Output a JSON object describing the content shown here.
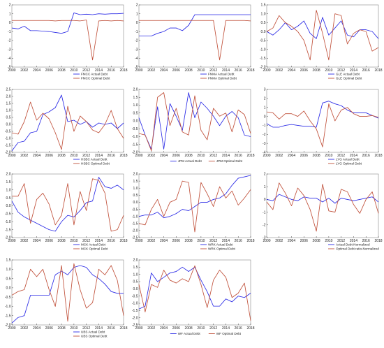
{
  "colors": {
    "actual": "#2a2ae6",
    "optimal": "#c0503a",
    "axis": "#444444",
    "frame": "#888888"
  },
  "chart_data": [
    {
      "id": "fmcc",
      "type": "line",
      "ylim": [
        -5,
        2
      ],
      "yticks": [
        "-5",
        "-4",
        "-3",
        "-2",
        "-1",
        "0",
        "1",
        "2"
      ],
      "x": [
        2000,
        2001,
        2002,
        2003,
        2004,
        2005,
        2006,
        2007,
        2008,
        2009,
        2010,
        2011,
        2012,
        2013,
        2014,
        2015,
        2016,
        2017,
        2018
      ],
      "xticks": [
        "2000",
        "2002",
        "2004",
        "2006",
        "2008",
        "2010",
        "2012",
        "2014",
        "2016",
        "2018"
      ],
      "legend": "bottom-right",
      "series": [
        {
          "name": "FMCC Actual Debt",
          "role": "actual",
          "values": [
            -0.6,
            -0.7,
            -0.4,
            -0.9,
            -0.9,
            -0.95,
            -1.0,
            -1.1,
            -1.2,
            -1.0,
            1.1,
            0.9,
            0.95,
            0.9,
            1.0,
            0.95,
            1.0,
            1.0,
            1.05
          ]
        },
        {
          "name": "FMCC Optimal Debt",
          "role": "optimal",
          "values": [
            0.25,
            0.25,
            0.25,
            0.25,
            0.25,
            0.25,
            0.25,
            0.2,
            0.25,
            0.25,
            0.25,
            0.2,
            0.3,
            -4.2,
            0.2,
            0.25,
            0.2,
            0.25,
            0.2
          ]
        }
      ]
    },
    {
      "id": "fnma",
      "type": "line",
      "ylim": [
        -5,
        2
      ],
      "yticks": [
        "-5",
        "-4",
        "-3",
        "-2",
        "-1",
        "0",
        "1",
        "2"
      ],
      "x": [
        2000,
        2001,
        2002,
        2003,
        2004,
        2005,
        2006,
        2007,
        2008,
        2009,
        2010,
        2011,
        2012,
        2013,
        2014,
        2015,
        2016,
        2017,
        2018
      ],
      "xticks": [
        "2000",
        "2002",
        "2004",
        "2006",
        "2008",
        "2010",
        "2012",
        "2014",
        "2016",
        "2018"
      ],
      "legend": "bottom-right",
      "series": [
        {
          "name": "FNMA Actual Debt",
          "role": "actual",
          "values": [
            -1.5,
            -1.5,
            -1.5,
            -1.2,
            -1.0,
            -0.6,
            -0.6,
            -0.9,
            -0.3,
            0.9,
            0.9,
            0.9,
            0.9,
            0.9,
            0.9,
            0.9,
            0.9,
            0.9,
            0.9
          ]
        },
        {
          "name": "FNMA Optimal Debt",
          "role": "optimal",
          "values": [
            0.25,
            0.25,
            0.25,
            0.25,
            0.25,
            0.25,
            0.25,
            0.25,
            0.25,
            0.25,
            0.25,
            0.25,
            0.25,
            -4.2,
            0.25,
            0.25,
            0.25,
            0.25,
            0.2
          ]
        }
      ]
    },
    {
      "id": "gle",
      "type": "line",
      "ylim": [
        -2,
        1.5
      ],
      "yticks": [
        "-2.0",
        "-1.5",
        "-1.0",
        "-0.5",
        "0.0",
        "0.5",
        "1.0",
        "1.5"
      ],
      "x": [
        2000,
        2001,
        2002,
        2003,
        2004,
        2005,
        2006,
        2007,
        2008,
        2009,
        2010,
        2011,
        2012,
        2013,
        2014,
        2015,
        2016,
        2017,
        2018
      ],
      "xticks": [
        "2000",
        "2002",
        "2004",
        "2006",
        "2008",
        "2010",
        "2012",
        "2014",
        "2016",
        "2018"
      ],
      "legend": "bottom-right",
      "series": [
        {
          "name": "GLE Actual Debt",
          "role": "actual",
          "values": [
            0.0,
            -0.2,
            0.1,
            0.5,
            0.1,
            0.3,
            0.6,
            -0.1,
            -0.4,
            0.8,
            -0.2,
            0.2,
            0.6,
            -0.2,
            -0.3,
            0.1,
            0.1,
            0.0,
            -0.4
          ]
        },
        {
          "name": "GLE Optimal Debt",
          "role": "optimal",
          "values": [
            0.0,
            0.2,
            0.9,
            0.5,
            0.3,
            0.0,
            -0.5,
            -1.6,
            1.2,
            -0.1,
            -1.6,
            1.0,
            0.9,
            -0.7,
            -0.1,
            0.1,
            0.0,
            -1.1,
            -0.9
          ]
        }
      ]
    },
    {
      "id": "hsbc",
      "type": "line",
      "ylim": [
        -2,
        2.5
      ],
      "yticks": [
        "-2.0",
        "-1.5",
        "-1.0",
        "-0.5",
        "0.0",
        "0.5",
        "1.0",
        "1.5",
        "2.0",
        "2.5"
      ],
      "x": [
        2000,
        2001,
        2002,
        2003,
        2004,
        2005,
        2006,
        2007,
        2008,
        2009,
        2010,
        2011,
        2012,
        2013,
        2014,
        2015,
        2016,
        2017,
        2018
      ],
      "xticks": [
        "2000",
        "2002",
        "2004",
        "2006",
        "2008",
        "2010",
        "2012",
        "2014",
        "2016",
        "2018"
      ],
      "legend": "bottom-right",
      "series": [
        {
          "name": "HSBC Actual Debt",
          "role": "actual",
          "values": [
            -1.9,
            -1.3,
            -1.2,
            -0.6,
            -0.5,
            0.7,
            0.9,
            1.2,
            2.1,
            0.2,
            0.3,
            0.0,
            0.2,
            -0.2,
            0.1,
            0.0,
            0.1,
            -0.3,
            0.1
          ]
        },
        {
          "name": "HSBC Optimal Debt",
          "role": "optimal",
          "values": [
            -0.6,
            -0.7,
            0.2,
            1.6,
            0.3,
            0.8,
            0.4,
            -0.6,
            -1.8,
            1.3,
            -0.5,
            0.6,
            0.2,
            -0.4,
            -0.6,
            0.0,
            1.0,
            -0.3,
            -1.0
          ]
        }
      ]
    },
    {
      "id": "jpm",
      "type": "line",
      "ylim": [
        -2,
        2
      ],
      "yticks": [
        "-2.0",
        "-1.5",
        "-1.0",
        "-0.5",
        "0.0",
        "0.5",
        "1.0",
        "1.5",
        "2.0"
      ],
      "x": [
        2000,
        2001,
        2002,
        2003,
        2004,
        2005,
        2006,
        2007,
        2008,
        2009,
        2010,
        2011,
        2012,
        2013,
        2014,
        2015,
        2016,
        2017,
        2018
      ],
      "xticks": [
        "2000",
        "2002",
        "2004",
        "2006",
        "2008",
        "2010",
        "2012",
        "2014",
        "2016",
        "2018"
      ],
      "legend": "bottom-center",
      "series": [
        {
          "name": "JPM Actual Debt",
          "role": "actual",
          "values": [
            0.2,
            -0.9,
            -1.8,
            0.9,
            -1.8,
            1.1,
            0.3,
            -0.6,
            1.8,
            0.2,
            1.2,
            0.8,
            0.3,
            -0.3,
            0.3,
            0.6,
            0.2,
            -0.9,
            -1.0
          ]
        },
        {
          "name": "JPM Optimal Debt",
          "role": "optimal",
          "values": [
            -0.8,
            -0.9,
            -1.9,
            1.5,
            1.8,
            -0.3,
            0.8,
            -0.7,
            -0.9,
            1.6,
            -0.6,
            -1.2,
            0.8,
            0.3,
            0.5,
            -0.7,
            0.7,
            0.4,
            -0.8
          ]
        }
      ]
    },
    {
      "id": "lyg",
      "type": "line",
      "ylim": [
        -4,
        3
      ],
      "yticks": [
        "-4",
        "-3",
        "-2",
        "-1",
        "0",
        "1",
        "2",
        "3"
      ],
      "x": [
        2000,
        2001,
        2002,
        2003,
        2004,
        2005,
        2006,
        2007,
        2008,
        2009,
        2010,
        2011,
        2012,
        2013,
        2014,
        2015,
        2016,
        2017,
        2018
      ],
      "xticks": [
        "2000",
        "2002",
        "2004",
        "2006",
        "2008",
        "2010",
        "2012",
        "2014",
        "2016",
        "2018"
      ],
      "legend": "bottom-right",
      "series": [
        {
          "name": "LYG Actual Debt",
          "role": "actual",
          "values": [
            -0.8,
            -1.2,
            -1.2,
            -1.0,
            -0.9,
            -1.0,
            -1.1,
            -1.1,
            -1.2,
            1.5,
            1.7,
            1.4,
            1.2,
            0.7,
            0.4,
            0.4,
            0.4,
            0.1,
            -0.2
          ]
        },
        {
          "name": "LYG Optimal Debt",
          "role": "optimal",
          "values": [
            0.5,
            0.4,
            -0.3,
            0.3,
            0.3,
            0.0,
            0.6,
            -0.5,
            -1.4,
            -3.4,
            1.4,
            -0.5,
            0.7,
            1.0,
            0.3,
            0.0,
            0.0,
            0.1,
            -0.1
          ]
        }
      ]
    },
    {
      "id": "mck",
      "type": "line",
      "ylim": [
        -2,
        2
      ],
      "yticks": [
        "-2.0",
        "-1.5",
        "-1.0",
        "-0.5",
        "0.0",
        "0.5",
        "1.0",
        "1.5",
        "2.0"
      ],
      "x": [
        2000,
        2001,
        2002,
        2003,
        2004,
        2005,
        2006,
        2007,
        2008,
        2009,
        2010,
        2011,
        2012,
        2013,
        2014,
        2015,
        2016,
        2017,
        2018
      ],
      "xticks": [
        "2000",
        "2002",
        "2004",
        "2006",
        "2008",
        "2010",
        "2012",
        "2014",
        "2016",
        "2018"
      ],
      "legend": "bottom-right",
      "series": [
        {
          "name": "MCK Actual Debt",
          "role": "actual",
          "values": [
            0.3,
            -0.4,
            -0.7,
            -0.9,
            -1.1,
            -1.3,
            -1.5,
            -1.6,
            -1.0,
            -0.6,
            -0.7,
            -0.3,
            0.2,
            0.3,
            1.8,
            1.2,
            1.1,
            1.3,
            1.0
          ]
        },
        {
          "name": "MCK Optimal Debt",
          "role": "optimal",
          "values": [
            0.6,
            0.6,
            1.4,
            -1.1,
            0.4,
            0.8,
            0.1,
            -1.2,
            -0.6,
            1.4,
            -1.2,
            0.9,
            -0.3,
            1.7,
            1.6,
            0.8,
            -1.6,
            -1.5,
            -0.6
          ]
        }
      ]
    },
    {
      "id": "wrk",
      "type": "line",
      "ylim": [
        -2.5,
        2
      ],
      "yticks": [
        "-2.5",
        "-2.0",
        "-1.5",
        "-1.0",
        "-0.5",
        "0.0",
        "0.5",
        "1.0",
        "1.5",
        "2.0"
      ],
      "x": [
        2000,
        2001,
        2002,
        2003,
        2004,
        2005,
        2006,
        2007,
        2008,
        2009,
        2010,
        2011,
        2012,
        2013,
        2014,
        2015,
        2016,
        2017,
        2018
      ],
      "xticks": [
        "2000",
        "2002",
        "2004",
        "2006",
        "2008",
        "2010",
        "2012",
        "2014",
        "2016",
        "2018"
      ],
      "legend": "bottom-right",
      "series": [
        {
          "name": "WRK Actual Debt",
          "role": "actual",
          "values": [
            -1.0,
            -0.9,
            -0.9,
            -0.7,
            -1.1,
            -1.0,
            -0.8,
            -0.5,
            -0.6,
            -0.3,
            0.0,
            0.0,
            0.2,
            0.3,
            0.6,
            1.2,
            1.7,
            1.8,
            1.9
          ]
        },
        {
          "name": "WRK Optimal Debt",
          "role": "optimal",
          "values": [
            -1.5,
            -1.6,
            -0.5,
            0.2,
            -1.0,
            0.0,
            0.2,
            1.5,
            1.4,
            -2.1,
            1.4,
            0.6,
            -0.3,
            1.1,
            0.3,
            0.8,
            -0.2,
            0.3,
            0.9
          ]
        }
      ]
    },
    {
      "id": "normalized",
      "type": "line",
      "ylim": [
        -3,
        2
      ],
      "yticks": [
        "-3",
        "-2",
        "-1",
        "0",
        "1",
        "2"
      ],
      "x": [
        2000,
        2001,
        2002,
        2003,
        2004,
        2005,
        2006,
        2007,
        2008,
        2009,
        2010,
        2011,
        2012,
        2013,
        2014,
        2015,
        2016,
        2017,
        2018
      ],
      "xticks": [
        "2000",
        "2002",
        "2004",
        "2006",
        "2008",
        "2010",
        "2012",
        "2014",
        "2016",
        "2018"
      ],
      "legend": "bottom-right",
      "series": [
        {
          "name": "Actual Debt-Normalized",
          "role": "actual",
          "values": [
            0.0,
            -0.1,
            0.4,
            0.2,
            0.0,
            -0.1,
            0.2,
            0.1,
            0.1,
            -0.2,
            0.1,
            -0.3,
            0.1,
            0.0,
            -0.1,
            0.0,
            0.1,
            0.2,
            -0.2
          ]
        },
        {
          "name": "Optimal Debt ratio-Normalized",
          "role": "optimal",
          "values": [
            -0.2,
            -0.8,
            1.3,
            0.5,
            -0.5,
            0.9,
            0.3,
            -0.8,
            -2.5,
            1.2,
            -0.9,
            -1.0,
            0.8,
            0.6,
            -0.4,
            -1.1,
            0.0,
            0.6,
            -1.1
          ]
        }
      ]
    },
    {
      "id": "ubs",
      "type": "line",
      "ylim": [
        -2,
        1.5
      ],
      "yticks": [
        "-2.0",
        "-1.5",
        "-1.0",
        "-0.5",
        "0.0",
        "0.5",
        "1.0",
        "1.5"
      ],
      "x": [
        2000,
        2001,
        2002,
        2003,
        2004,
        2005,
        2006,
        2007,
        2008,
        2009,
        2010,
        2011,
        2012,
        2013,
        2014,
        2015,
        2016,
        2017,
        2018
      ],
      "xticks": [
        "2000",
        "2002",
        "2004",
        "2006",
        "2008",
        "2010",
        "2012",
        "2014",
        "2016",
        "2018"
      ],
      "legend": "bottom-right",
      "series": [
        {
          "name": "UBS Actual Debt",
          "role": "actual",
          "values": [
            -1.9,
            -1.6,
            -1.5,
            -0.4,
            -0.4,
            -0.4,
            -0.4,
            0.7,
            0.9,
            0.7,
            1.1,
            1.2,
            1.1,
            0.7,
            0.5,
            0.2,
            -0.2,
            -0.3,
            -0.3
          ]
        },
        {
          "name": "UBS Optimal Debt",
          "role": "optimal",
          "values": [
            -0.4,
            -0.2,
            -0.1,
            1.0,
            0.6,
            1.0,
            -0.1,
            -1.0,
            1.2,
            -1.8,
            1.3,
            -0.1,
            -1.1,
            -0.8,
            1.0,
            0.7,
            1.2,
            0.4,
            -1.5
          ]
        }
      ]
    },
    {
      "id": "wf",
      "type": "line",
      "ylim": [
        -2.5,
        2
      ],
      "yticks": [
        "-2.5",
        "-2.0",
        "-1.5",
        "-1.0",
        "-0.5",
        "0.0",
        "0.5",
        "1.0",
        "1.5",
        "2.0"
      ],
      "x": [
        2000,
        2001,
        2002,
        2003,
        2004,
        2005,
        2006,
        2007,
        2008,
        2009,
        2010,
        2011,
        2012,
        2013,
        2014,
        2015,
        2016,
        2017,
        2018
      ],
      "xticks": [
        "2000",
        "2002",
        "2004",
        "2006",
        "2008",
        "2010",
        "2012",
        "2014",
        "2016",
        "2018"
      ],
      "legend": "bottom-center",
      "series": [
        {
          "name": "WF Actual Debt",
          "role": "actual",
          "values": [
            -1.4,
            -1.2,
            1.1,
            0.5,
            0.8,
            1.1,
            1.2,
            1.5,
            1.2,
            1.5,
            0.6,
            -0.2,
            -1.2,
            -1.2,
            -0.7,
            -0.9,
            -0.5,
            -0.6,
            -0.3
          ]
        },
        {
          "name": "WF Optimal Debt",
          "role": "optimal",
          "values": [
            0.3,
            -1.6,
            0.3,
            0.1,
            1.3,
            0.6,
            0.4,
            0.7,
            0.5,
            1.6,
            0.3,
            -1.3,
            0.6,
            1.3,
            0.8,
            -0.6,
            -0.3,
            0.4,
            -2.2
          ]
        }
      ]
    }
  ]
}
